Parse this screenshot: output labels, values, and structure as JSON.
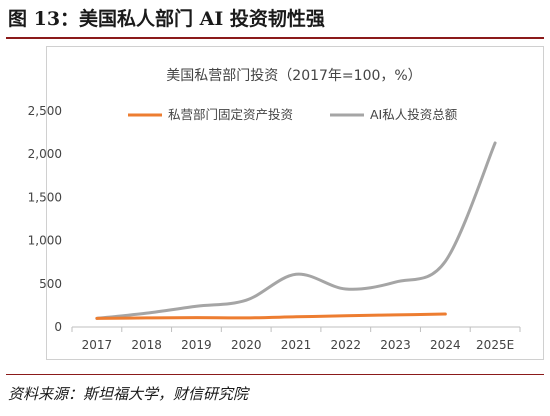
{
  "figure": {
    "title": "图 13：美国私人部门 AI 投资韧性强",
    "source": "资料来源：斯坦福大学，财信研究院"
  },
  "chart_data": {
    "type": "line",
    "title": "美国私营部门投资（2017年=100，%）",
    "xlabel": "",
    "ylabel": "",
    "categories": [
      "2017",
      "2018",
      "2019",
      "2020",
      "2021",
      "2022",
      "2023",
      "2024",
      "2025E"
    ],
    "ylim": [
      0,
      2500
    ],
    "yticks": [
      0,
      500,
      1000,
      1500,
      2000,
      2500
    ],
    "ytick_labels": [
      "0",
      "500",
      "1,000",
      "1,500",
      "2,000",
      "2,500"
    ],
    "grid": false,
    "legend_position": "top",
    "series": [
      {
        "name": "私营部门固定资产投资",
        "color": "#ed7d31",
        "values": [
          100,
          105,
          108,
          106,
          118,
          130,
          140,
          150,
          null
        ]
      },
      {
        "name": "AI私人投资总额",
        "color": "#a5a5a5",
        "values": [
          100,
          160,
          240,
          310,
          610,
          440,
          520,
          760,
          2130
        ]
      }
    ]
  }
}
